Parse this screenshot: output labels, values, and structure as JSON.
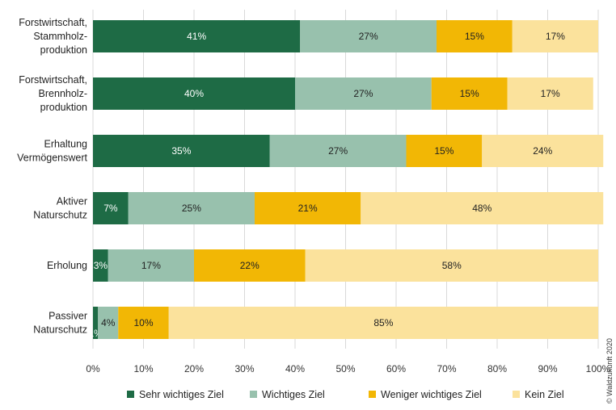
{
  "chart_data": {
    "type": "bar",
    "orientation": "horizontal",
    "stacked": true,
    "categories": [
      [
        "Forstwirtschaft,",
        "Stammholz-",
        "produktion"
      ],
      [
        "Forstwirtschaft,",
        "Brennholz-",
        "produktion"
      ],
      [
        "Erhaltung",
        "Vermögenswert"
      ],
      [
        "Aktiver",
        "Naturschutz"
      ],
      [
        "Erholung"
      ],
      [
        "Passiver",
        "Naturschutz"
      ]
    ],
    "series": [
      {
        "name": "Sehr wichtiges Ziel",
        "color": "#1e6b45",
        "label_color": "#ffffff",
        "values": [
          41,
          40,
          35,
          7,
          3,
          1
        ]
      },
      {
        "name": "Wichtiges Ziel",
        "color": "#98c1ad",
        "label_color": "#222222",
        "values": [
          27,
          27,
          27,
          25,
          17,
          4
        ]
      },
      {
        "name": "Weniger wichtiges Ziel",
        "color": "#f2b705",
        "label_color": "#222222",
        "values": [
          15,
          15,
          15,
          21,
          22,
          10
        ]
      },
      {
        "name": "Kein Ziel",
        "color": "#fbe29c",
        "label_color": "#222222",
        "values": [
          17,
          17,
          24,
          48,
          58,
          85
        ]
      }
    ],
    "xlim": [
      0,
      100
    ],
    "xticks": [
      "0%",
      "10%",
      "20%",
      "30%",
      "40%",
      "50%",
      "60%",
      "70%",
      "80%",
      "90%",
      "100%"
    ],
    "grid": true,
    "legend_position": "bottom",
    "credit": "© Waldzukunft 2020"
  }
}
